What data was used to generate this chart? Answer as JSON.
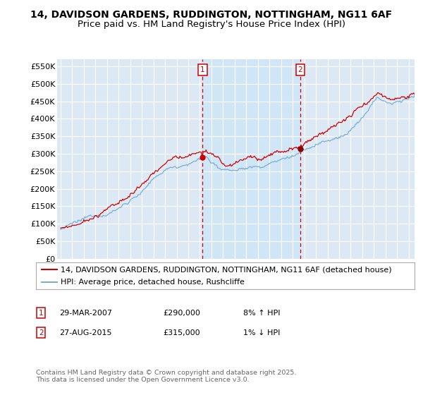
{
  "title1": "14, DAVIDSON GARDENS, RUDDINGTON, NOTTINGHAM, NG11 6AF",
  "title2": "Price paid vs. HM Land Registry's House Price Index (HPI)",
  "ylabel_ticks": [
    "£0",
    "£50K",
    "£100K",
    "£150K",
    "£200K",
    "£250K",
    "£300K",
    "£350K",
    "£400K",
    "£450K",
    "£500K",
    "£550K"
  ],
  "ytick_values": [
    0,
    50000,
    100000,
    150000,
    200000,
    250000,
    300000,
    350000,
    400000,
    450000,
    500000,
    550000
  ],
  "ylim": [
    0,
    570000
  ],
  "xlim_years": [
    1994.7,
    2025.5
  ],
  "xtick_years": [
    1995,
    1996,
    1997,
    1998,
    1999,
    2000,
    2001,
    2002,
    2003,
    2004,
    2005,
    2006,
    2007,
    2008,
    2009,
    2010,
    2011,
    2012,
    2013,
    2014,
    2015,
    2016,
    2017,
    2018,
    2019,
    2020,
    2021,
    2022,
    2023,
    2024,
    2025
  ],
  "bg_color": "#dce9f5",
  "line1_color": "#cc0000",
  "line2_color": "#7aaed6",
  "fill_color": "#d0e5f5",
  "vline_color": "#cc0000",
  "sale1_year": 2007.24,
  "sale1_price": 290000,
  "sale2_year": 2015.65,
  "sale2_price": 315000,
  "legend1_label": "14, DAVIDSON GARDENS, RUDDINGTON, NOTTINGHAM, NG11 6AF (detached house)",
  "legend2_label": "HPI: Average price, detached house, Rushcliffe",
  "table_row1": [
    "1",
    "29-MAR-2007",
    "£290,000",
    "8% ↑ HPI"
  ],
  "table_row2": [
    "2",
    "27-AUG-2015",
    "£315,000",
    "1% ↓ HPI"
  ],
  "footnote": "Contains HM Land Registry data © Crown copyright and database right 2025.\nThis data is licensed under the Open Government Licence v3.0.",
  "title_fontsize": 10,
  "tick_fontsize": 8,
  "legend_fontsize": 8
}
